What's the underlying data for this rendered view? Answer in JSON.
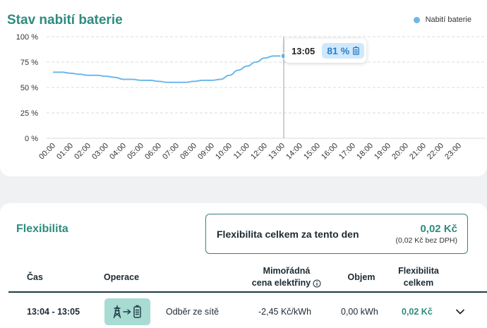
{
  "battery_card": {
    "title": "Stav nabití baterie",
    "legend_label": "Nabití baterie",
    "tooltip": {
      "time": "13:05",
      "value": "81 %"
    }
  },
  "chart_data": {
    "type": "line",
    "title": "Stav nabití baterie",
    "series": [
      {
        "name": "Nabití baterie",
        "color": "#6cb8ea",
        "x_hours": [
          0,
          0.5,
          1,
          1.5,
          2,
          2.5,
          3,
          3.5,
          4,
          4.5,
          5,
          5.5,
          6,
          6.5,
          7,
          7.5,
          8,
          8.5,
          9,
          9.5,
          10,
          10.5,
          11,
          11.5,
          12,
          12.5,
          13.08
        ],
        "values": [
          65,
          65,
          64,
          63,
          62,
          62,
          61,
          60,
          58,
          58,
          57,
          57,
          56,
          55,
          55,
          55,
          56,
          57,
          57,
          58,
          62,
          67,
          71,
          75,
          79,
          81,
          81
        ]
      }
    ],
    "x_ticks": [
      "00:00",
      "01:00",
      "02:00",
      "03:00",
      "04:00",
      "05:00",
      "06:00",
      "07:00",
      "08:00",
      "09:00",
      "10:00",
      "11:00",
      "12:00",
      "13:00",
      "14:00",
      "15:00",
      "16:00",
      "17:00",
      "18:00",
      "19:00",
      "20:00",
      "21:00",
      "22:00",
      "23:00"
    ],
    "y_ticks": [
      "0 %",
      "25 %",
      "50 %",
      "75 %",
      "100 %"
    ],
    "ylim": [
      0,
      100
    ],
    "grid": true,
    "legend": "top-right",
    "cursor_hour": 13.08
  },
  "flex_card": {
    "title": "Flexibilita",
    "total_label": "Flexibilita celkem za tento den",
    "total_value": "0,02 Kč",
    "total_sub": "(0,02 Kč bez DPH)"
  },
  "table": {
    "headers": {
      "time": "Čas",
      "operation": "Operace",
      "price_line1": "Mimořádná",
      "price_line2": "cena elektřiny",
      "volume": "Objem",
      "flex_line1": "Flexibilita",
      "flex_line2": "celkem"
    },
    "rows": [
      {
        "time": "13:04 - 13:05",
        "operation": "Odběr ze sítě",
        "price": "-2,45 Kč/kWh",
        "volume": "0,00 kWh",
        "flex": "0,02 Kč"
      }
    ]
  }
}
